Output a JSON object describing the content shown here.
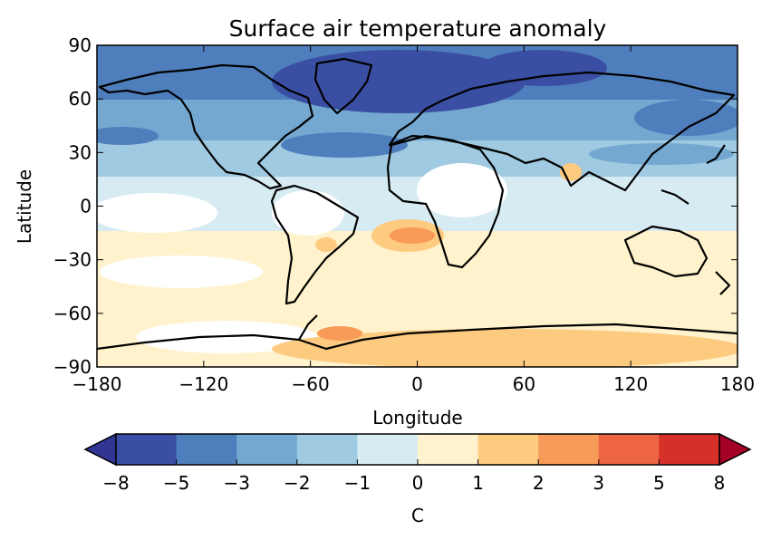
{
  "figure": {
    "title": "Surface air temperature anomaly",
    "xlabel": "Longitude",
    "ylabel": "Latitude",
    "x_ticks": [
      "−180",
      "−120",
      "−60",
      "0",
      "60",
      "120",
      "180"
    ],
    "y_ticks": [
      "90",
      "60",
      "30",
      "0",
      "−30",
      "−60",
      "−90"
    ]
  },
  "colorbar": {
    "label": "C",
    "tick_labels": [
      "−8",
      "−5",
      "−3",
      "−2",
      "−1",
      "0",
      "1",
      "2",
      "3",
      "5",
      "8"
    ],
    "levels": [
      -8,
      -5,
      -3,
      -2,
      -1,
      0,
      1,
      2,
      3,
      5,
      8
    ],
    "under_color": "#313695",
    "over_color": "#a50026",
    "colors": [
      "#3a4fa3",
      "#4f7ebd",
      "#74a8d0",
      "#9fcae1",
      "#d7ebf3",
      "#fff2cc",
      "#fdcb80",
      "#f99b58",
      "#ee6543",
      "#d73029"
    ]
  },
  "chart_data": {
    "type": "heatmap",
    "title": "Surface air temperature anomaly",
    "xlabel": "Longitude",
    "ylabel": "Latitude",
    "xlim": [
      -180,
      180
    ],
    "ylim": [
      -90,
      90
    ],
    "colorbar_levels": [
      -8,
      -5,
      -3,
      -2,
      -1,
      0,
      1,
      2,
      3,
      5,
      8
    ],
    "colorbar_unit": "C"
  }
}
